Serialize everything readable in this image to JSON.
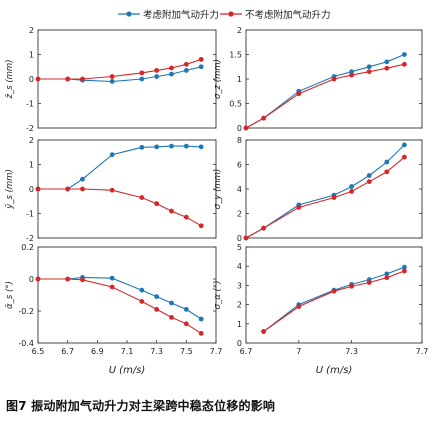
{
  "legend": [
    {
      "label": "考虑附加气动升力",
      "color": "#1f77b4"
    },
    {
      "label": "不考虑附加气动升力",
      "color": "#d62728"
    }
  ],
  "caption": "图7  振动附加气动升力对主梁跨中稳态位移的影响",
  "x_label": "U (m/s)",
  "chart_data": [
    {
      "type": "line",
      "panel": "top-left",
      "ylabel": "z̄_s (mm)",
      "xlim": [
        6.5,
        7.7
      ],
      "ylim": [
        -2,
        2
      ],
      "xticks": [],
      "yticks": [
        -2,
        -1,
        0,
        1,
        2
      ],
      "series": [
        {
          "name": "考虑附加气动升力",
          "x": [
            6.7,
            6.8,
            7.0,
            7.2,
            7.3,
            7.4,
            7.5,
            7.6
          ],
          "y": [
            0.0,
            -0.05,
            -0.1,
            0.0,
            0.1,
            0.2,
            0.35,
            0.5
          ]
        },
        {
          "name": "不考虑附加气动升力",
          "x": [
            6.5,
            6.7,
            6.8,
            7.0,
            7.2,
            7.3,
            7.4,
            7.5,
            7.6
          ],
          "y": [
            0.0,
            0.0,
            0.0,
            0.1,
            0.25,
            0.35,
            0.45,
            0.6,
            0.8
          ]
        }
      ]
    },
    {
      "type": "line",
      "panel": "top-right",
      "ylabel": "σ_z (mm)",
      "xlim": [
        6.7,
        7.7
      ],
      "ylim": [
        0,
        2.0
      ],
      "xticks": [],
      "yticks": [
        0,
        0.5,
        1.0,
        1.5,
        2.0
      ],
      "series": [
        {
          "name": "考虑附加气动升力",
          "x": [
            6.7,
            6.8,
            7.0,
            7.2,
            7.3,
            7.4,
            7.5,
            7.6
          ],
          "y": [
            0.0,
            0.2,
            0.75,
            1.05,
            1.15,
            1.25,
            1.35,
            1.5
          ]
        },
        {
          "name": "不考虑附加气动升力",
          "x": [
            6.7,
            6.8,
            7.0,
            7.2,
            7.3,
            7.4,
            7.5,
            7.6
          ],
          "y": [
            0.0,
            0.2,
            0.7,
            1.0,
            1.08,
            1.15,
            1.22,
            1.3
          ]
        }
      ]
    },
    {
      "type": "line",
      "panel": "middle-left",
      "ylabel": "ȳ_s (mm)",
      "xlim": [
        6.5,
        7.7
      ],
      "ylim": [
        -2,
        2
      ],
      "xticks": [],
      "yticks": [
        -2,
        -1,
        0,
        1,
        2
      ],
      "series": [
        {
          "name": "考虑附加气动升力",
          "x": [
            6.5,
            6.7,
            6.8,
            7.0,
            7.2,
            7.3,
            7.4,
            7.5,
            7.6
          ],
          "y": [
            0.0,
            0.0,
            0.4,
            1.4,
            1.7,
            1.72,
            1.75,
            1.75,
            1.72
          ]
        },
        {
          "name": "不考虑附加气动升力",
          "x": [
            6.5,
            6.7,
            6.8,
            7.0,
            7.2,
            7.3,
            7.4,
            7.5,
            7.6
          ],
          "y": [
            0.0,
            0.0,
            0.0,
            -0.05,
            -0.35,
            -0.6,
            -0.9,
            -1.15,
            -1.5
          ]
        }
      ]
    },
    {
      "type": "line",
      "panel": "middle-right",
      "ylabel": "σ_y (mm)",
      "xlim": [
        6.7,
        7.7
      ],
      "ylim": [
        0,
        8
      ],
      "xticks": [],
      "yticks": [
        0,
        2,
        4,
        6,
        8
      ],
      "series": [
        {
          "name": "考虑附加气动升力",
          "x": [
            6.7,
            6.8,
            7.0,
            7.2,
            7.3,
            7.4,
            7.5,
            7.6
          ],
          "y": [
            0.0,
            0.8,
            2.7,
            3.5,
            4.2,
            5.1,
            6.2,
            7.6
          ]
        },
        {
          "name": "不考虑附加气动升力",
          "x": [
            6.7,
            6.8,
            7.0,
            7.2,
            7.3,
            7.4,
            7.5,
            7.6
          ],
          "y": [
            0.0,
            0.8,
            2.5,
            3.3,
            3.8,
            4.6,
            5.4,
            6.6
          ]
        }
      ]
    },
    {
      "type": "line",
      "panel": "bottom-left",
      "ylabel": "ᾱ_s (°)",
      "xlim": [
        6.5,
        7.7
      ],
      "ylim": [
        -0.4,
        0.2
      ],
      "xticks": [
        6.5,
        6.7,
        6.9,
        7.1,
        7.3,
        7.5,
        7.7
      ],
      "yticks": [
        -0.4,
        -0.2,
        0,
        0.2
      ],
      "series": [
        {
          "name": "考虑附加气动升力",
          "x": [
            6.5,
            6.7,
            6.8,
            7.0,
            7.2,
            7.3,
            7.4,
            7.5,
            7.6
          ],
          "y": [
            0.0,
            0.0,
            0.01,
            0.005,
            -0.07,
            -0.11,
            -0.15,
            -0.19,
            -0.25
          ]
        },
        {
          "name": "不考虑附加气动升力",
          "x": [
            6.5,
            6.7,
            6.8,
            7.0,
            7.2,
            7.3,
            7.4,
            7.5,
            7.6
          ],
          "y": [
            0.0,
            0.0,
            -0.005,
            -0.05,
            -0.14,
            -0.19,
            -0.24,
            -0.28,
            -0.34
          ]
        }
      ]
    },
    {
      "type": "line",
      "panel": "bottom-right",
      "ylabel": "σ_α (°)",
      "xlim": [
        6.7,
        7.7
      ],
      "ylim": [
        0,
        5
      ],
      "xticks": [
        6.7,
        7.0,
        7.3,
        7.7
      ],
      "yticks": [
        0,
        1,
        2,
        3,
        4,
        5
      ],
      "series": [
        {
          "name": "考虑附加气动升力",
          "x": [
            6.8,
            7.0,
            7.2,
            7.3,
            7.4,
            7.5,
            7.6
          ],
          "y": [
            0.6,
            2.0,
            2.75,
            3.05,
            3.3,
            3.6,
            3.95
          ]
        },
        {
          "name": "不考虑附加气动升力",
          "x": [
            6.8,
            7.0,
            7.2,
            7.3,
            7.4,
            7.5,
            7.6
          ],
          "y": [
            0.6,
            1.9,
            2.7,
            2.95,
            3.15,
            3.4,
            3.75
          ]
        }
      ]
    }
  ]
}
